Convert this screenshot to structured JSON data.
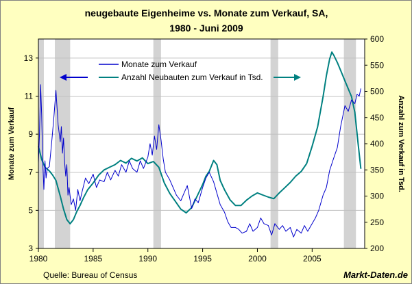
{
  "chart_data": {
    "type": "line",
    "title": "neugebaute Eigenheime vs. Monate zum Verkauf, SA,",
    "subtitle": "1980 - Juni 2009",
    "ylabel_left": "Monate zum Verkauf",
    "ylabel_right": "Anzahl zum Verkauf in Tsd.",
    "xlim": [
      1980,
      2009.8
    ],
    "ylim_left": [
      3,
      14
    ],
    "ylim_right": [
      200,
      600
    ],
    "x_ticks": [
      1980,
      1985,
      1990,
      1995,
      2000,
      2005
    ],
    "y_left_ticks": [
      3,
      5,
      7,
      9,
      11,
      13
    ],
    "y_right_ticks": [
      200,
      250,
      300,
      350,
      400,
      450,
      500,
      550,
      600
    ],
    "recessions": [
      [
        1980.0,
        1980.5
      ],
      [
        1981.5,
        1982.9
      ],
      [
        1990.5,
        1991.2
      ],
      [
        2001.2,
        2001.9
      ],
      [
        2007.9,
        2009.0
      ]
    ],
    "legend": {
      "monate_label": "Monate zum Verkauf",
      "anzahl_label": "Anzahl Neubauten zum Verkauf in Tsd."
    },
    "colors": {
      "monate": "#0000cc",
      "anzahl": "#008080",
      "recession": "#d3d3d3",
      "plot_bg": "#ffffff",
      "frame_bg": "#ffffc0"
    },
    "series": [
      {
        "name": "Monate zum Verkauf",
        "axis": "left",
        "x": [
          1980.0,
          1980.1,
          1980.2,
          1980.3,
          1980.4,
          1980.5,
          1980.6,
          1980.7,
          1980.8,
          1981.0,
          1981.2,
          1981.4,
          1981.6,
          1981.8,
          1982.0,
          1982.1,
          1982.2,
          1982.3,
          1982.4,
          1982.5,
          1982.6,
          1982.7,
          1982.8,
          1983.0,
          1983.2,
          1983.4,
          1983.6,
          1983.8,
          1984.0,
          1984.3,
          1984.6,
          1985.0,
          1985.3,
          1985.6,
          1986.0,
          1986.3,
          1986.6,
          1987.0,
          1987.3,
          1987.6,
          1988.0,
          1988.3,
          1988.6,
          1989.0,
          1989.3,
          1989.6,
          1990.0,
          1990.2,
          1990.4,
          1990.6,
          1990.8,
          1991.0,
          1991.2,
          1991.4,
          1991.6,
          1991.8,
          1992.0,
          1992.3,
          1992.6,
          1993.0,
          1993.3,
          1993.6,
          1994.0,
          1994.3,
          1994.6,
          1995.0,
          1995.3,
          1995.6,
          1996.0,
          1996.3,
          1996.6,
          1997.0,
          1997.3,
          1997.6,
          1998.0,
          1998.3,
          1998.6,
          1999.0,
          1999.3,
          1999.6,
          2000.0,
          2000.3,
          2000.6,
          2001.0,
          2001.3,
          2001.6,
          2002.0,
          2002.3,
          2002.6,
          2003.0,
          2003.3,
          2003.6,
          2004.0,
          2004.3,
          2004.6,
          2005.0,
          2005.3,
          2005.6,
          2006.0,
          2006.3,
          2006.6,
          2007.0,
          2007.3,
          2007.6,
          2008.0,
          2008.3,
          2008.6,
          2008.9,
          2009.1,
          2009.3,
          2009.45
        ],
        "values": [
          7.5,
          9.0,
          11.6,
          10.0,
          7.5,
          6.1,
          7.6,
          6.7,
          7.2,
          7.3,
          8.5,
          9.8,
          11.3,
          9.5,
          8.6,
          9.4,
          8.0,
          8.8,
          7.5,
          6.8,
          7.4,
          5.8,
          6.2,
          5.3,
          5.6,
          5.0,
          6.1,
          5.5,
          6.0,
          6.7,
          6.4,
          6.9,
          6.2,
          6.6,
          6.5,
          7.0,
          6.6,
          7.1,
          6.8,
          7.4,
          7.0,
          7.6,
          7.2,
          7.0,
          7.6,
          7.2,
          7.8,
          8.5,
          7.9,
          8.9,
          8.2,
          9.5,
          8.7,
          7.7,
          7.0,
          6.8,
          6.6,
          6.2,
          5.8,
          5.5,
          5.9,
          6.3,
          5.1,
          5.6,
          5.4,
          6.2,
          6.7,
          7.0,
          6.5,
          5.9,
          5.3,
          4.9,
          4.4,
          4.1,
          4.1,
          4.0,
          3.8,
          3.9,
          4.3,
          3.9,
          4.1,
          4.6,
          4.3,
          4.2,
          3.7,
          4.3,
          4.0,
          4.2,
          3.9,
          4.1,
          3.6,
          4.0,
          3.8,
          4.2,
          3.9,
          4.3,
          4.6,
          5.0,
          5.8,
          6.2,
          7.1,
          7.8,
          8.3,
          9.4,
          10.5,
          10.2,
          10.8,
          10.6,
          11.1,
          11.0,
          11.4
        ]
      },
      {
        "name": "Anzahl Neubauten zum Verkauf in Tsd.",
        "axis": "right",
        "x": [
          1980.0,
          1980.3,
          1980.6,
          1981.0,
          1981.3,
          1981.6,
          1982.0,
          1982.3,
          1982.6,
          1982.9,
          1983.2,
          1983.5,
          1983.8,
          1984.1,
          1984.5,
          1985.0,
          1985.5,
          1986.0,
          1986.5,
          1987.0,
          1987.5,
          1988.0,
          1988.5,
          1989.0,
          1989.5,
          1990.0,
          1990.5,
          1991.0,
          1991.5,
          1992.0,
          1992.5,
          1993.0,
          1993.5,
          1994.0,
          1994.5,
          1995.0,
          1995.3,
          1995.6,
          1996.0,
          1996.3,
          1996.6,
          1997.0,
          1997.5,
          1998.0,
          1998.5,
          1999.0,
          1999.5,
          2000.0,
          2000.5,
          2001.0,
          2001.5,
          2002.0,
          2002.5,
          2003.0,
          2003.5,
          2004.0,
          2004.5,
          2005.0,
          2005.5,
          2006.0,
          2006.3,
          2006.6,
          2006.8,
          2007.0,
          2007.3,
          2007.6,
          2008.0,
          2008.3,
          2008.6,
          2008.9,
          2009.2,
          2009.45
        ],
        "values": [
          395,
          370,
          355,
          348,
          340,
          330,
          300,
          275,
          255,
          247,
          255,
          270,
          282,
          296,
          312,
          325,
          340,
          350,
          355,
          360,
          368,
          363,
          372,
          367,
          373,
          362,
          366,
          355,
          325,
          305,
          290,
          275,
          268,
          278,
          300,
          322,
          338,
          347,
          368,
          360,
          330,
          312,
          293,
          282,
          282,
          292,
          300,
          306,
          302,
          298,
          295,
          306,
          316,
          326,
          338,
          347,
          362,
          395,
          432,
          490,
          530,
          562,
          575,
          568,
          555,
          540,
          520,
          505,
          490,
          460,
          400,
          352
        ]
      }
    ]
  },
  "source": "Quelle: Bureau of Census",
  "brand": "Markt-Daten.de"
}
